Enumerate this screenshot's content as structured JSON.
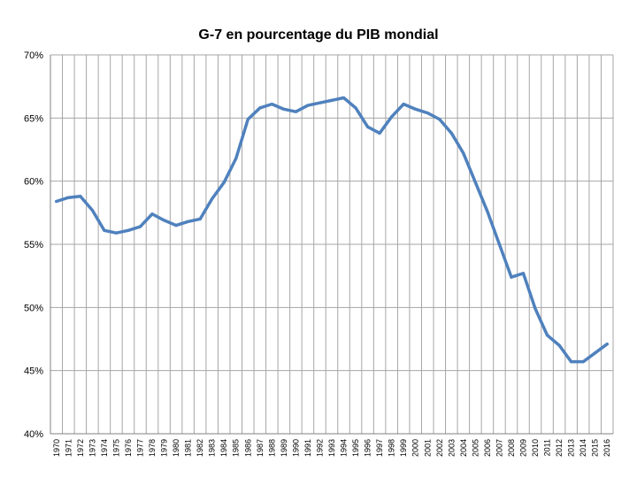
{
  "chart_data": {
    "type": "line",
    "title": "G-7 en pourcentage du PIB mondial",
    "xlabel": "",
    "ylabel": "",
    "ylim": [
      40,
      70
    ],
    "y_ticks": [
      "40%",
      "45%",
      "50%",
      "55%",
      "60%",
      "65%",
      "70%"
    ],
    "y_tick_values": [
      40,
      45,
      50,
      55,
      60,
      65,
      70
    ],
    "grid": true,
    "legend": "none",
    "line_color": "#4f81bd",
    "x": [
      "1970",
      "1971",
      "1972",
      "1973",
      "1974",
      "1975",
      "1976",
      "1977",
      "1978",
      "1979",
      "1980",
      "1981",
      "1982",
      "1983",
      "1984",
      "1985",
      "1986",
      "1987",
      "1988",
      "1989",
      "1990",
      "1991",
      "1992",
      "1993",
      "1994",
      "1995",
      "1996",
      "1997",
      "1998",
      "1999",
      "2000",
      "2001",
      "2002",
      "2003",
      "2004",
      "2005",
      "2006",
      "2007",
      "2008",
      "2009",
      "2010",
      "2011",
      "2012",
      "2013",
      "2014",
      "2015",
      "2016"
    ],
    "series": [
      {
        "values": [
          58.4,
          58.7,
          58.8,
          57.7,
          56.1,
          55.9,
          56.1,
          56.4,
          57.4,
          56.9,
          56.5,
          56.8,
          57.0,
          58.6,
          59.9,
          61.8,
          64.9,
          65.8,
          66.1,
          65.7,
          65.5,
          66.0,
          66.2,
          66.4,
          66.6,
          65.8,
          64.3,
          63.8,
          65.1,
          66.1,
          65.7,
          65.4,
          64.9,
          63.8,
          62.2,
          59.9,
          57.6,
          55.0,
          52.4,
          52.7,
          49.9,
          47.8,
          47.0,
          45.7,
          45.7,
          46.4,
          47.1
        ]
      }
    ]
  }
}
